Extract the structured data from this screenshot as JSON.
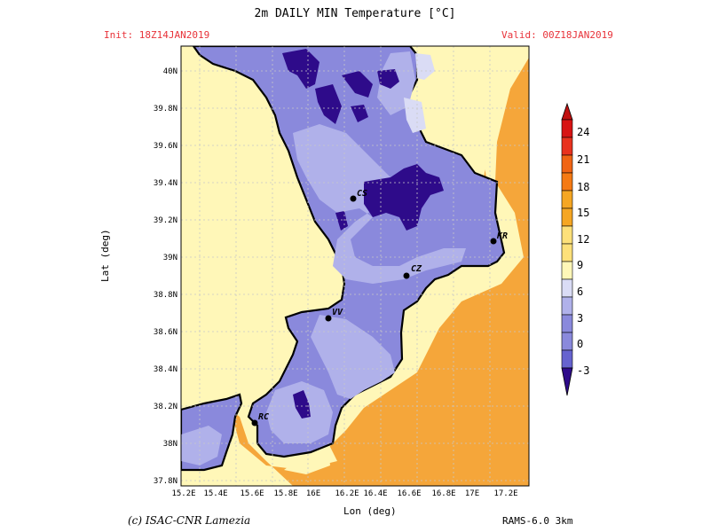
{
  "header": {
    "title": "2m DAILY MIN Temperature [°C]",
    "init": "Init: 18Z14JAN2019",
    "valid": "Valid: 00Z18JAN2019"
  },
  "axes": {
    "xlabel": "Lon (deg)",
    "ylabel": "Lat (deg)",
    "lon_ticks": [
      "15.2E",
      "15.4E",
      "15.6E",
      "15.8E",
      "16E",
      "16.2E",
      "16.4E",
      "16.6E",
      "16.8E",
      "17E",
      "17.2E"
    ],
    "lat_ticks": [
      "37.8N",
      "38N",
      "38.2N",
      "38.4N",
      "38.6N",
      "38.8N",
      "39N",
      "39.2N",
      "39.4N",
      "39.6N",
      "39.8N",
      "40N"
    ]
  },
  "colorbar": {
    "labels": [
      "24",
      "21",
      "18",
      "15",
      "12",
      "9",
      "6",
      "3",
      "0",
      "-3"
    ],
    "colors": [
      "#d71414",
      "#f0461e",
      "#f57a14",
      "#f5a623",
      "#fde07a",
      "#fff7b8",
      "#dadcf5",
      "#b0b1ea",
      "#8a89dc",
      "#6663cf",
      "#2e0b8a"
    ]
  },
  "cities": [
    {
      "code": "CS"
    },
    {
      "code": "KR"
    },
    {
      "code": "CZ"
    },
    {
      "code": "VV"
    },
    {
      "code": "RC"
    }
  ],
  "footer": {
    "credit": "(c) ISAC-CNR Lamezia",
    "model": "RAMS-6.0 3km"
  },
  "colors": {
    "sea": "#f5a63a",
    "coast_band": "#fff7b8",
    "land_low": "#8a89dc",
    "land_mid": "#b0b1ea",
    "cold": "#2e0b8a"
  }
}
